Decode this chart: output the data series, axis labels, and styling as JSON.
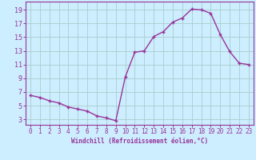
{
  "x": [
    0,
    1,
    2,
    3,
    4,
    5,
    6,
    7,
    8,
    9,
    10,
    11,
    12,
    13,
    14,
    15,
    16,
    17,
    18,
    19,
    20,
    21,
    22,
    23
  ],
  "y": [
    6.5,
    6.2,
    5.7,
    5.4,
    4.8,
    4.5,
    4.2,
    3.5,
    3.2,
    2.8,
    9.2,
    12.8,
    13.0,
    15.1,
    15.8,
    17.2,
    17.8,
    19.1,
    19.0,
    18.5,
    15.4,
    12.9,
    11.2,
    11.0
  ],
  "line_color": "#993399",
  "marker": "+",
  "marker_size": 3,
  "marker_lw": 1.0,
  "bg_color": "#cceeff",
  "grid_color": "#aacccc",
  "xlabel": "Windchill (Refroidissement éolien,°C)",
  "ylabel_ticks": [
    3,
    5,
    7,
    9,
    11,
    13,
    15,
    17,
    19
  ],
  "xlim": [
    -0.5,
    23.5
  ],
  "ylim": [
    2.2,
    20.2
  ],
  "xticks": [
    0,
    1,
    2,
    3,
    4,
    5,
    6,
    7,
    8,
    9,
    10,
    11,
    12,
    13,
    14,
    15,
    16,
    17,
    18,
    19,
    20,
    21,
    22,
    23
  ],
  "axis_color": "#993399",
  "tick_label_color": "#993399",
  "tick_fontsize": 5.5,
  "xlabel_fontsize": 5.5,
  "line_width": 1.0
}
